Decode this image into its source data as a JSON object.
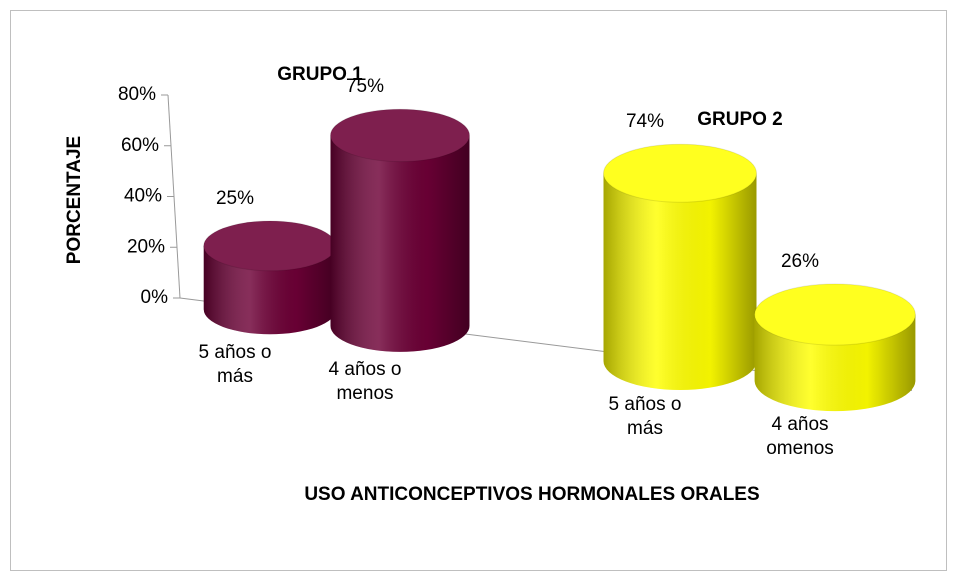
{
  "chart_data": {
    "type": "bar3d",
    "group_labels": [
      "GRUPO 1",
      "GRUPO 2"
    ],
    "categories": [
      "5 años o más",
      "4 años o menos",
      "5 años o más",
      "4 años omenos"
    ],
    "values": [
      25,
      75,
      74,
      26
    ],
    "value_labels": [
      "25%",
      "75%",
      "74%",
      "26%"
    ],
    "colors": [
      "#6d0036",
      "#6d0036",
      "#ffff00",
      "#ffff00"
    ],
    "xlabel": "USO ANTICONCEPTIVOS HORMONALES ORALES",
    "ylabel": "PORCENTAJE",
    "ylim": [
      0,
      80
    ],
    "yticks": [
      {
        "value": 0,
        "label": "0%"
      },
      {
        "value": 20,
        "label": "20%"
      },
      {
        "value": 40,
        "label": "40%"
      },
      {
        "value": 60,
        "label": "60%"
      },
      {
        "value": 80,
        "label": "80%"
      }
    ],
    "grid": false
  }
}
